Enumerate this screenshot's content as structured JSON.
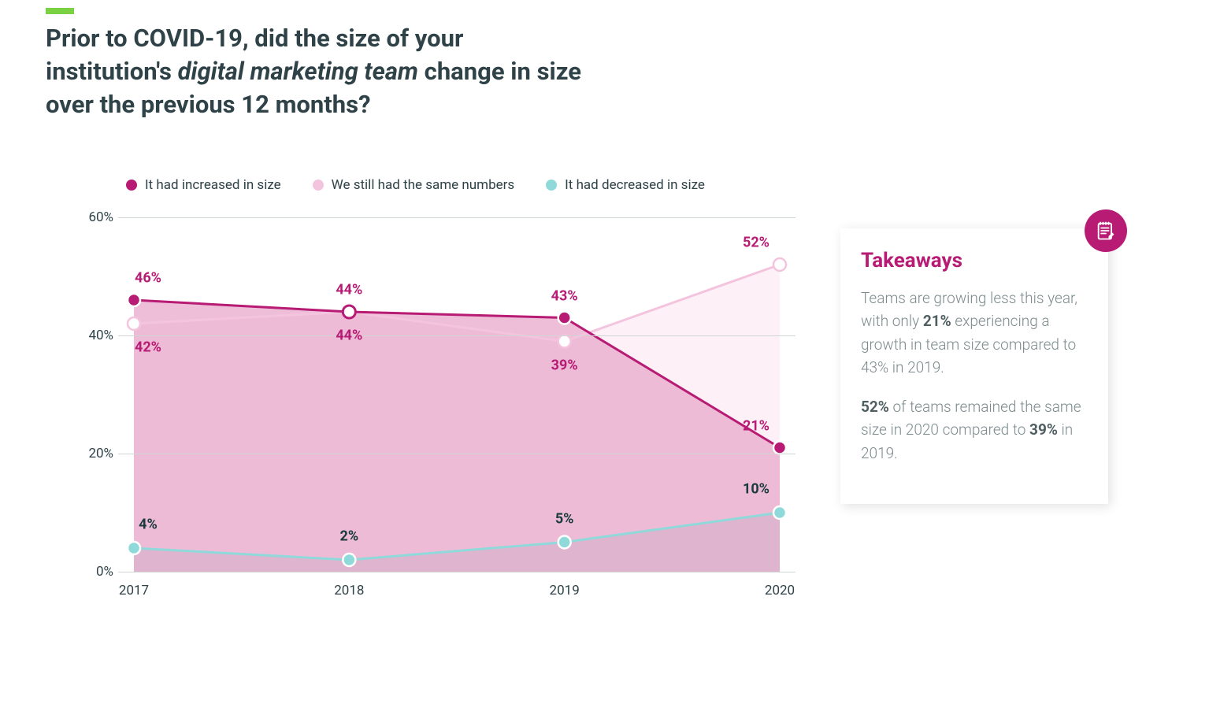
{
  "accent_color": "#7ad141",
  "title": {
    "pre": "Prior to COVID-19, did the size of your institution's ",
    "em": "digital marketing team",
    "post": " change in size over the previous 12 months?",
    "color": "#2e4248",
    "fontsize": 31
  },
  "chart": {
    "type": "line-area",
    "categories": [
      "2017",
      "2018",
      "2019",
      "2020"
    ],
    "xlim": [
      0,
      3
    ],
    "ylim": [
      0,
      60
    ],
    "ytick_step": 20,
    "yticks": [
      "0%",
      "20%",
      "40%",
      "60%"
    ],
    "grid_color": "#cfd6d3",
    "background_color": "#ffffff",
    "label_fontsize": 17,
    "data_label_fontsize": 18,
    "marker_radius": 8,
    "line_width": 3,
    "series": [
      {
        "key": "increased",
        "label": "It had increased in size",
        "color": "#b71b74",
        "area_fill": "#e8a8cb",
        "area_opacity": 0.75,
        "values": [
          46,
          44,
          43,
          21
        ],
        "data_labels": [
          "46%",
          "44%",
          "43%",
          "21%"
        ],
        "label_positions": [
          {
            "x": 0,
            "y": 46,
            "dx": 18,
            "dy": -28
          },
          {
            "x": 1,
            "y": 44,
            "dx": 0,
            "dy": -28
          },
          {
            "x": 2,
            "y": 43,
            "dx": 0,
            "dy": -28
          },
          {
            "x": 3,
            "y": 21,
            "dx": -30,
            "dy": -28
          }
        ],
        "label_color": "#b71b74",
        "marker_fill": "#b71b74",
        "marker_stroke": "#ffffff",
        "marker_hollow_index": 1
      },
      {
        "key": "same",
        "label": "We still had the same numbers",
        "color": "#f4c4de",
        "area_fill": "#fbe7f2",
        "area_opacity": 0.6,
        "values": [
          42,
          44,
          39,
          52
        ],
        "data_labels": [
          "42%",
          "44%",
          "39%",
          "52%"
        ],
        "label_positions": [
          {
            "x": 0,
            "y": 42,
            "dx": 18,
            "dy": 30
          },
          {
            "x": 1,
            "y": 44,
            "dx": 0,
            "dy": 30
          },
          {
            "x": 2,
            "y": 39,
            "dx": 0,
            "dy": 30
          },
          {
            "x": 3,
            "y": 52,
            "dx": -30,
            "dy": -28
          }
        ],
        "label_color": "#b71b74",
        "marker_fill": "#ffffff",
        "marker_stroke": "#f4c4de"
      },
      {
        "key": "decreased",
        "label": "It had decreased in size",
        "color": "#8fd9db",
        "area_fill": "#c2a9c2",
        "area_opacity": 0.35,
        "values": [
          4,
          2,
          5,
          10
        ],
        "data_labels": [
          "4%",
          "2%",
          "5%",
          "10%"
        ],
        "label_positions": [
          {
            "x": 0,
            "y": 4,
            "dx": 18,
            "dy": -30
          },
          {
            "x": 1,
            "y": 2,
            "dx": 0,
            "dy": -30
          },
          {
            "x": 2,
            "y": 5,
            "dx": 0,
            "dy": -30
          },
          {
            "x": 3,
            "y": 10,
            "dx": -30,
            "dy": -30
          }
        ],
        "label_color": "#1a3a3e",
        "marker_fill": "#8fd9db",
        "marker_stroke": "#ffffff"
      }
    ]
  },
  "legend": {
    "fontsize": 17,
    "text_color": "#2e4248"
  },
  "takeaways": {
    "title": "Takeaways",
    "title_color": "#b71b74",
    "badge_bg": "#b71b74",
    "badge_fg": "#ffffff",
    "text_color": "#7b8a8c",
    "bold_color": "#4f5e61",
    "para1_parts": [
      {
        "t": "Teams are growing less this year, with only ",
        "b": false
      },
      {
        "t": "21%",
        "b": true
      },
      {
        "t": " experiencing a growth in team size compared to 43% in 2019.",
        "b": false
      }
    ],
    "para2_parts": [
      {
        "t": "52%",
        "b": true
      },
      {
        "t": " of teams remained the same size in 2020 compared to ",
        "b": false
      },
      {
        "t": "39%",
        "b": true
      },
      {
        "t": " in 2019.",
        "b": false
      }
    ]
  }
}
